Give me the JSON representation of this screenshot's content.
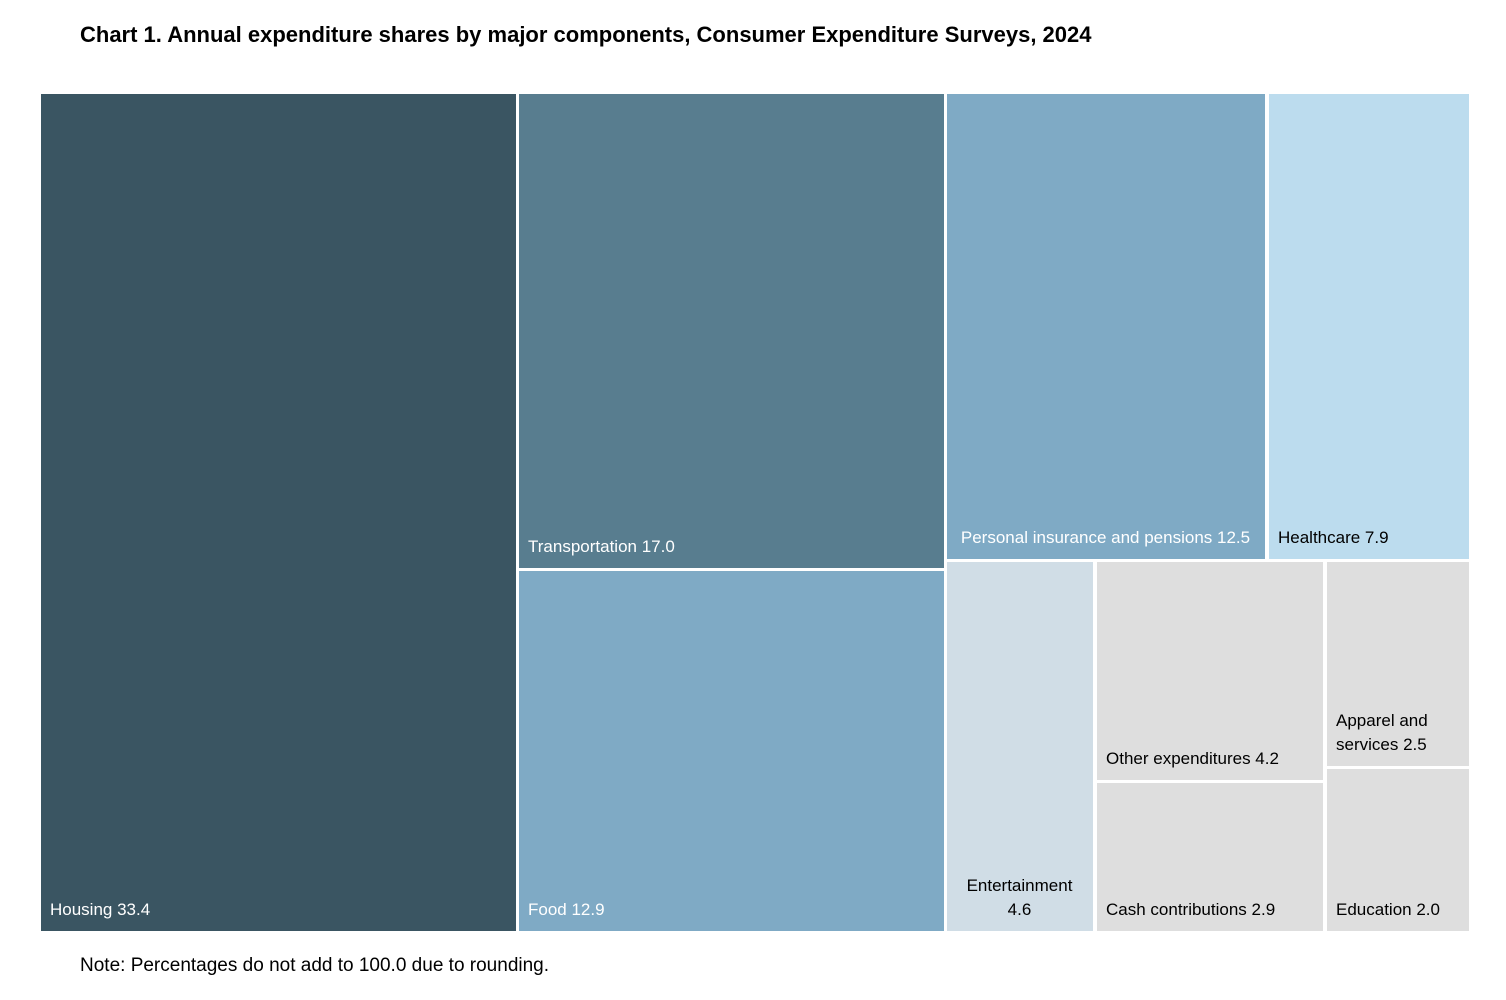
{
  "chart_data": {
    "type": "treemap",
    "title": "Chart 1. Annual expenditure shares by major components, Consumer Expenditure Surveys, 2024",
    "note": "Note: Percentages do not add to 100.0 due to rounding.",
    "unit": "percent",
    "items": [
      {
        "name": "Housing",
        "value": 33.4,
        "color": "#3a5562",
        "text_color": "#ffffff"
      },
      {
        "name": "Transportation",
        "value": 17.0,
        "color": "#587d8f",
        "text_color": "#ffffff"
      },
      {
        "name": "Food",
        "value": 12.9,
        "color": "#7faac5",
        "text_color": "#ffffff"
      },
      {
        "name": "Personal insurance and pensions",
        "value": 12.5,
        "color": "#7faac5",
        "text_color": "#ffffff"
      },
      {
        "name": "Healthcare",
        "value": 7.9,
        "color": "#bcdcee",
        "text_color": "#000000"
      },
      {
        "name": "Entertainment",
        "value": 4.6,
        "color": "#d0dde6",
        "text_color": "#000000"
      },
      {
        "name": "Other expenditures",
        "value": 4.2,
        "color": "#dedede",
        "text_color": "#000000"
      },
      {
        "name": "Cash contributions",
        "value": 2.9,
        "color": "#dedede",
        "text_color": "#000000"
      },
      {
        "name": "Apparel and services",
        "value": 2.5,
        "color": "#dedede",
        "text_color": "#000000"
      },
      {
        "name": "Education",
        "value": 2.0,
        "color": "#dedede",
        "text_color": "#000000"
      }
    ],
    "labels": [
      "Housing 33.4",
      "Transportation 17.0",
      "Food 12.9",
      "Personal insurance and pensions 12.5",
      "Healthcare 7.9",
      "Entertainment 4.6",
      "Other expenditures 4.2",
      "Cash contributions 2.9",
      "Apparel and services 2.5",
      "Education 2.0"
    ]
  }
}
